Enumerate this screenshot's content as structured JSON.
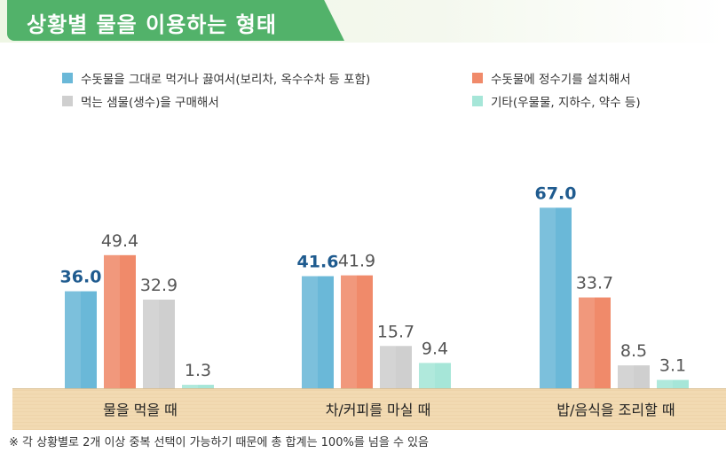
{
  "title": "상황별 물을 이용하는 형태",
  "legend": [
    {
      "label": "수돗물을 그대로 먹거나 끓여서(보리차, 옥수수차 등 포함)",
      "color": "#6ab8d8"
    },
    {
      "label": "수돗물에 정수기를 설치해서",
      "color": "#f08a6a"
    },
    {
      "label": "먹는 샘물(생수)을 구매해서",
      "color": "#cfcfcf"
    },
    {
      "label": "기타(우물물, 지하수, 약수 등)",
      "color": "#a6e6d8"
    }
  ],
  "chart_data": {
    "type": "bar",
    "categories": [
      "물을 먹을 때",
      "차/커피를 마실 때",
      "밥/음식을 조리할 때"
    ],
    "series": [
      {
        "name": "수돗물을 그대로 먹거나 끓여서(보리차, 옥수수차 등 포함)",
        "values": [
          36.0,
          41.6,
          67.0
        ],
        "color": "#6ab8d8",
        "label_color": "#1f5b8f"
      },
      {
        "name": "수돗물에 정수기를 설치해서",
        "values": [
          49.4,
          41.9,
          33.7
        ],
        "color": "#f08a6a",
        "label_color": "#555555"
      },
      {
        "name": "먹는 샘물(생수)을 구매해서",
        "values": [
          32.9,
          15.7,
          8.5
        ],
        "color": "#cfcfcf",
        "label_color": "#555555"
      },
      {
        "name": "기타(우물물, 지하수, 약수 등)",
        "values": [
          1.3,
          9.4,
          3.1
        ],
        "color": "#a6e6d8",
        "label_color": "#555555"
      }
    ],
    "ylim": [
      0,
      70
    ],
    "grid": false,
    "legend_position": "top"
  },
  "footnote": "※ 각 상황별로 2개 이상 중복 선택이 가능하기 때문에 총 합계는 100%를 넘을 수 있음"
}
